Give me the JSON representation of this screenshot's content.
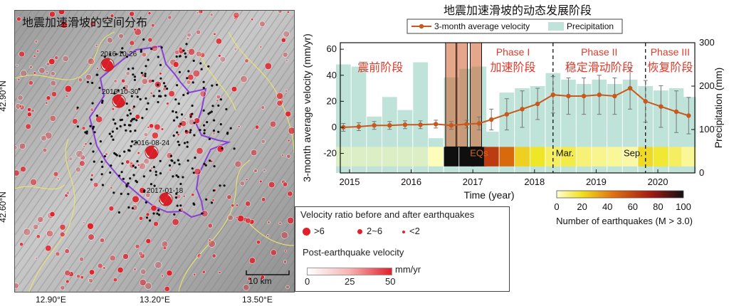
{
  "map": {
    "title": "地震加速滑坡的空间分布",
    "lat_ticks": [
      "42.90°N",
      "42.60°N"
    ],
    "lon_ticks": [
      "12.90°E",
      "13.20°E",
      "13.50°E"
    ],
    "scalebar": "10 km",
    "events": [
      "2016-10-26",
      "2016-10-30",
      "2016-08-24",
      "2017-01-18"
    ],
    "colors": {
      "boundary": "#8a3fd6",
      "faults": "#e9e56a",
      "dots": "#e0202a"
    }
  },
  "legend": {
    "ratio_title": "Velocity ratio before and after earthquakes",
    "ratio_items": [
      ">6",
      "2~6",
      "<2"
    ],
    "velocity_title": "Post-earthquake velocity",
    "velocity_unit": "mm/yr",
    "velocity_ticks": [
      "0",
      "25",
      "50"
    ]
  },
  "chart_data": {
    "type": "line",
    "title": "地震加速滑坡的动态发展阶段",
    "xlabel": "Time (year)",
    "ylabel_left": "3-month average velocity (mm/yr)",
    "ylabel_right": "Precipitation (mm)",
    "xlim": [
      2014.85,
      2020.6
    ],
    "ylim_left": [
      -35,
      65
    ],
    "ylim_right": [
      0,
      300
    ],
    "x_ticks": [
      "2015",
      "2016",
      "2017",
      "2018",
      "2019",
      "2020"
    ],
    "y_left_ticks": [
      "-20",
      "0",
      "20",
      "40",
      "60"
    ],
    "y_right_ticks": [
      "0",
      "100",
      "200",
      "300"
    ],
    "legend": [
      "3-month average velocity",
      "Precipitation"
    ],
    "series": [
      {
        "name": "3-month average velocity",
        "color": "#c8581e",
        "x": [
          2014.9,
          2015.15,
          2015.4,
          2015.65,
          2015.9,
          2016.15,
          2016.4,
          2016.65,
          2016.9,
          2017.1,
          2017.3,
          2017.55,
          2017.8,
          2018.05,
          2018.3,
          2018.55,
          2018.8,
          2019.05,
          2019.3,
          2019.55,
          2019.8,
          2020.05,
          2020.3,
          2020.5
        ],
        "y": [
          0,
          0.5,
          1.5,
          1.5,
          2,
          2,
          2.5,
          1.5,
          2.5,
          3,
          6,
          10,
          14,
          18,
          25,
          24,
          24,
          25,
          24,
          30,
          20,
          16,
          12,
          9
        ],
        "err": [
          3,
          3,
          3,
          3,
          3,
          3,
          3,
          3,
          3,
          5,
          8,
          12,
          14,
          12,
          14,
          14,
          14,
          15,
          14,
          16,
          16,
          16,
          16,
          14
        ]
      },
      {
        "name": "Precipitation",
        "color": "#bfe3d8",
        "x": [
          2014.9,
          2015.15,
          2015.4,
          2015.65,
          2015.9,
          2016.15,
          2016.4,
          2016.65,
          2016.9,
          2017.1,
          2017.3,
          2017.55,
          2017.8,
          2018.05,
          2018.3,
          2018.55,
          2018.8,
          2019.05,
          2019.3,
          2019.55,
          2019.8,
          2020.05,
          2020.3,
          2020.5
        ],
        "values": [
          250,
          245,
          130,
          175,
          145,
          255,
          80,
          220,
          240,
          245,
          95,
          185,
          195,
          200,
          230,
          215,
          205,
          215,
          205,
          215,
          200,
          190,
          195,
          175
        ]
      }
    ],
    "eq_events": [
      2016.65,
      2016.82,
      2017.05
    ],
    "vlines": [
      2018.3,
      2019.8
    ],
    "vline_labels": [
      "Mar.",
      "Sep."
    ],
    "eq_label": "EQs",
    "phases": [
      {
        "label1": "",
        "label2": "震前阶段",
        "x": 2015.5
      },
      {
        "label1": "Phase I",
        "label2": "加速阶段",
        "x": 2017.65
      },
      {
        "label1": "Phase II",
        "label2": "稳定滑动阶段",
        "x": 2019.05
      },
      {
        "label1": "Phase III",
        "label2": "恢复阶段",
        "x": 2020.2
      }
    ],
    "eq_strip": {
      "x": [
        2014.9,
        2015.15,
        2015.4,
        2015.65,
        2015.9,
        2016.15,
        2016.4,
        2016.65,
        2016.9,
        2017.1,
        2017.3,
        2017.55,
        2017.8,
        2018.05,
        2018.3,
        2018.55,
        2018.8,
        2019.05,
        2019.3,
        2019.55,
        2019.8,
        2020.05,
        2020.3,
        2020.5
      ],
      "counts": [
        0,
        0,
        0,
        0,
        0,
        0,
        2,
        100,
        100,
        100,
        60,
        45,
        20,
        15,
        10,
        12,
        8,
        6,
        5,
        4,
        18,
        14,
        10,
        5
      ]
    },
    "colorbar": {
      "label": "Number of earthquakes (M > 3.0)",
      "ticks": [
        "0",
        "20",
        "40",
        "60",
        "80",
        "100"
      ]
    }
  }
}
